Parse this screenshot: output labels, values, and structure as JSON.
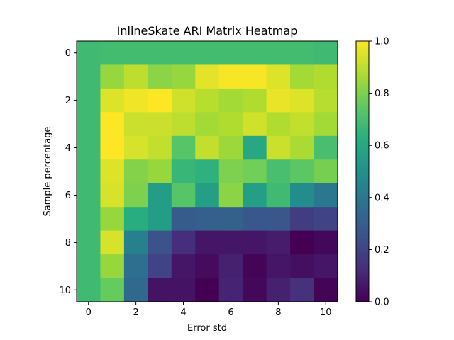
{
  "chart_data": {
    "type": "heatmap",
    "title": "InlineSkate ARI Matrix Heatmap",
    "xlabel": "Error std",
    "ylabel": "Sample percentage",
    "x": [
      0,
      1,
      2,
      3,
      4,
      5,
      6,
      7,
      8,
      9,
      10
    ],
    "y": [
      0,
      1,
      2,
      3,
      4,
      5,
      6,
      7,
      8,
      9,
      10
    ],
    "x_ticks": [
      "0",
      "2",
      "4",
      "6",
      "8",
      "10"
    ],
    "y_ticks": [
      "0",
      "2",
      "4",
      "6",
      "8",
      "10"
    ],
    "values": [
      [
        0.68,
        0.69,
        0.69,
        0.69,
        0.69,
        0.69,
        0.69,
        0.69,
        0.69,
        0.69,
        0.68
      ],
      [
        0.68,
        0.84,
        0.9,
        0.82,
        0.84,
        0.96,
        0.99,
        0.99,
        0.95,
        0.86,
        0.88
      ],
      [
        0.68,
        0.95,
        0.98,
        1.0,
        0.93,
        0.89,
        0.86,
        0.88,
        0.97,
        0.95,
        0.89
      ],
      [
        0.68,
        1.0,
        0.92,
        0.92,
        0.9,
        0.86,
        0.88,
        0.93,
        0.88,
        0.91,
        0.86
      ],
      [
        0.68,
        1.0,
        0.94,
        0.91,
        0.73,
        0.91,
        0.85,
        0.6,
        0.92,
        0.87,
        0.7
      ],
      [
        0.68,
        0.95,
        0.81,
        0.84,
        0.66,
        0.64,
        0.8,
        0.78,
        0.7,
        0.74,
        0.79
      ],
      [
        0.68,
        0.94,
        0.8,
        0.55,
        0.73,
        0.56,
        0.82,
        0.56,
        0.68,
        0.48,
        0.4
      ],
      [
        0.68,
        0.84,
        0.62,
        0.55,
        0.29,
        0.3,
        0.31,
        0.27,
        0.27,
        0.18,
        0.2
      ],
      [
        0.68,
        0.94,
        0.43,
        0.25,
        0.13,
        0.06,
        0.06,
        0.06,
        0.08,
        0.0,
        0.02
      ],
      [
        0.68,
        0.84,
        0.36,
        0.2,
        0.06,
        0.03,
        0.09,
        0.01,
        0.06,
        0.04,
        0.06
      ],
      [
        0.68,
        0.76,
        0.34,
        0.05,
        0.05,
        0.0,
        0.1,
        0.02,
        0.09,
        0.14,
        0.01
      ]
    ],
    "colormap": "viridis",
    "vmin": 0.0,
    "vmax": 1.0,
    "colorbar_ticks": [
      "0.0",
      "0.2",
      "0.4",
      "0.6",
      "0.8",
      "1.0"
    ],
    "legend": "colorbar-right",
    "grid": false
  }
}
